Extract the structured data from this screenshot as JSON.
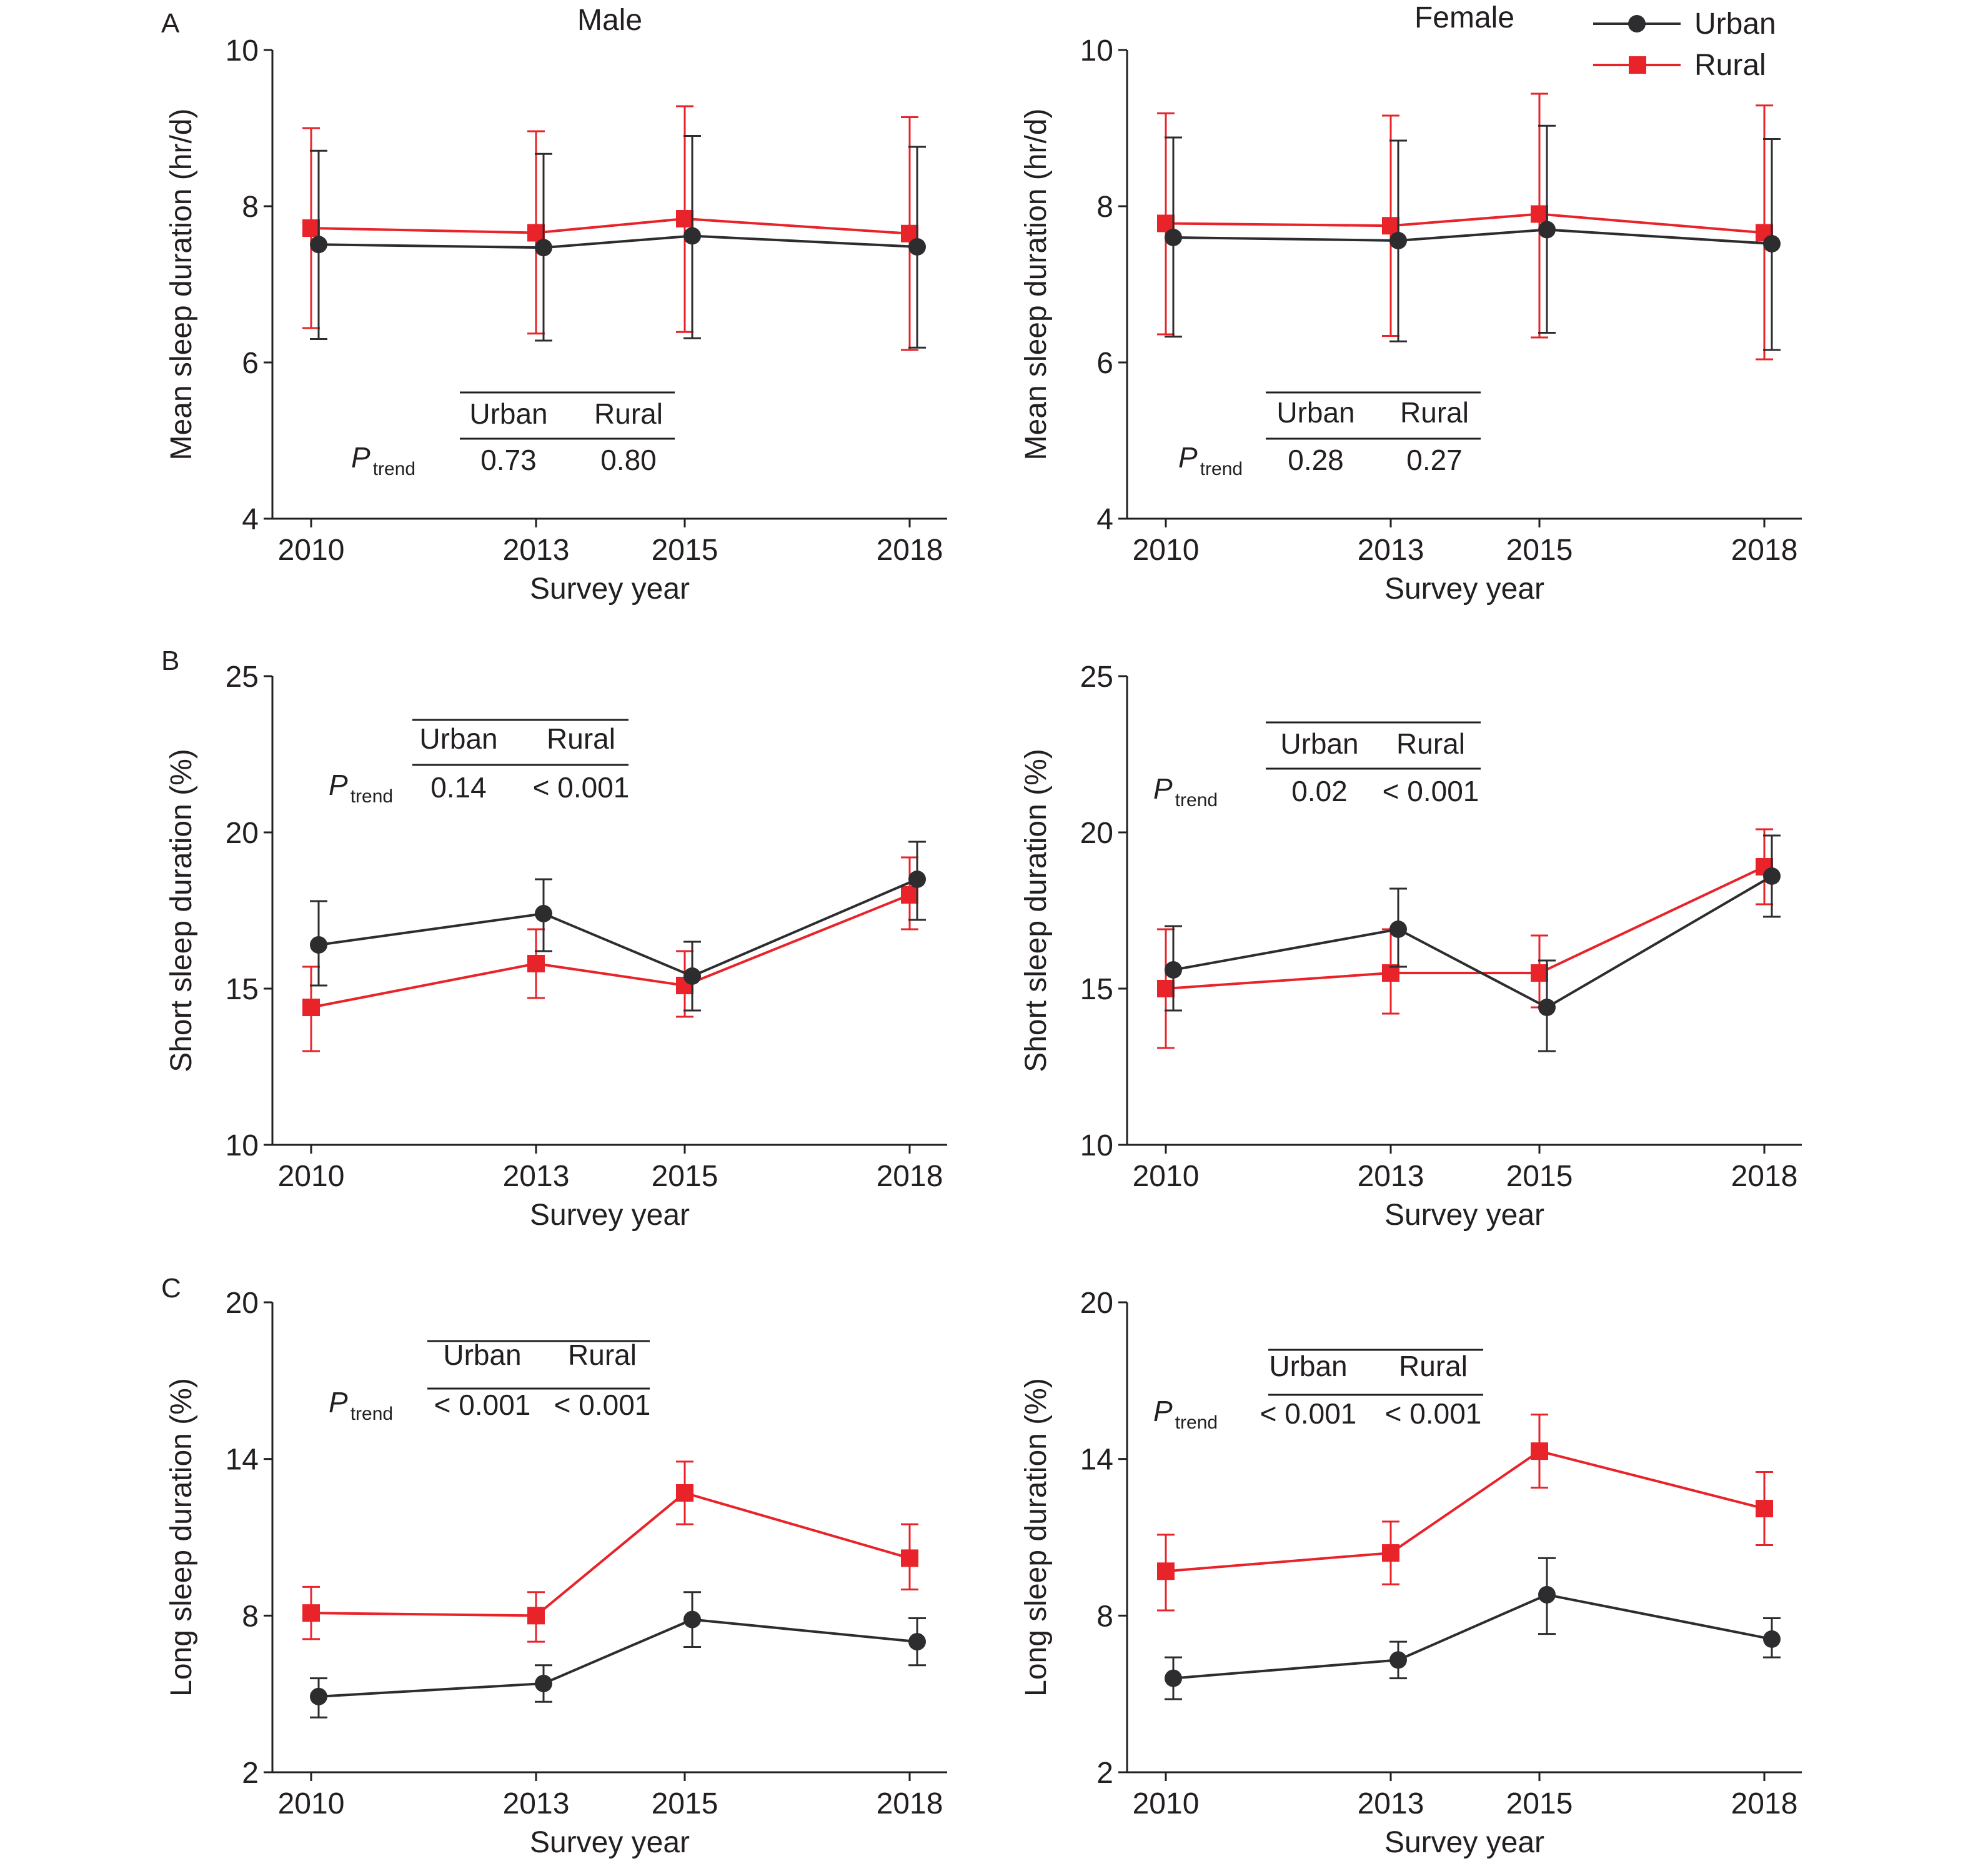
{
  "colors": {
    "urban": "#2d2d2f",
    "rural": "#e8232a",
    "axis": "#231f20"
  },
  "legend": {
    "items": [
      {
        "label": "Urban",
        "series": "urban",
        "marker": "circle"
      },
      {
        "label": "Rural",
        "series": "rural",
        "marker": "square"
      }
    ]
  },
  "ptrend_label": {
    "main": "P",
    "sub": "trend"
  },
  "chart_data": [
    {
      "type": "line",
      "panel": "A",
      "title": "Male",
      "xlabel": "Survey year",
      "ylabel": "Mean sleep duration (hr/d)",
      "x": [
        2010,
        2013,
        2015,
        2018
      ],
      "x_tick_labels": [
        "2010",
        "2013",
        "2015",
        "2018"
      ],
      "ylim": [
        4,
        10
      ],
      "y_ticks": [
        4,
        6,
        8,
        10
      ],
      "y_tick_labels": [
        "4",
        "6",
        "8",
        "10"
      ],
      "grid": false,
      "series": [
        {
          "name": "Urban",
          "values": [
            7.51,
            7.47,
            7.62,
            7.48
          ],
          "lower": [
            6.3,
            6.28,
            6.31,
            6.19
          ],
          "upper": [
            8.71,
            8.67,
            8.9,
            8.76
          ]
        },
        {
          "name": "Rural",
          "values": [
            7.72,
            7.66,
            7.84,
            7.65
          ],
          "lower": [
            6.44,
            6.37,
            6.39,
            6.16
          ],
          "upper": [
            9.0,
            8.96,
            9.28,
            9.14
          ]
        }
      ],
      "ptrend": {
        "headers": [
          "Urban",
          "Rural"
        ],
        "values": [
          "0.73",
          "0.80"
        ]
      }
    },
    {
      "type": "line",
      "panel": "A",
      "title": "Female",
      "xlabel": "Survey year",
      "ylabel": "Mean sleep duration (hr/d)",
      "x": [
        2010,
        2013,
        2015,
        2018
      ],
      "x_tick_labels": [
        "2010",
        "2013",
        "2015",
        "2018"
      ],
      "ylim": [
        4,
        10
      ],
      "y_ticks": [
        4,
        6,
        8,
        10
      ],
      "y_tick_labels": [
        "4",
        "6",
        "8",
        "10"
      ],
      "grid": false,
      "legend_position": "top-right",
      "series": [
        {
          "name": "Urban",
          "values": [
            7.6,
            7.56,
            7.7,
            7.52
          ],
          "lower": [
            6.33,
            6.27,
            6.38,
            6.16
          ],
          "upper": [
            8.88,
            8.84,
            9.03,
            8.86
          ]
        },
        {
          "name": "Rural",
          "values": [
            7.78,
            7.75,
            7.9,
            7.66
          ],
          "lower": [
            6.36,
            6.34,
            6.32,
            6.04
          ],
          "upper": [
            9.19,
            9.16,
            9.44,
            9.29
          ]
        }
      ],
      "ptrend": {
        "headers": [
          "Urban",
          "Rural"
        ],
        "values": [
          "0.28",
          "0.27"
        ]
      }
    },
    {
      "type": "line",
      "panel": "B",
      "title": "",
      "xlabel": "Survey year",
      "ylabel": "Short sleep duration (%)",
      "x": [
        2010,
        2013,
        2015,
        2018
      ],
      "x_tick_labels": [
        "2010",
        "2013",
        "2015",
        "2018"
      ],
      "ylim": [
        10,
        25
      ],
      "y_ticks": [
        10,
        15,
        20,
        25
      ],
      "y_tick_labels": [
        "10",
        "15",
        "20",
        "25"
      ],
      "grid": false,
      "series": [
        {
          "name": "Urban",
          "values": [
            16.4,
            17.4,
            15.4,
            18.5
          ],
          "lower": [
            15.1,
            16.2,
            14.3,
            17.2
          ],
          "upper": [
            17.8,
            18.5,
            16.5,
            19.7
          ]
        },
        {
          "name": "Rural",
          "values": [
            14.4,
            15.8,
            15.1,
            18.0
          ],
          "lower": [
            13.0,
            14.7,
            14.1,
            16.9
          ],
          "upper": [
            15.7,
            16.9,
            16.2,
            19.2
          ]
        }
      ],
      "ptrend": {
        "headers": [
          "Urban",
          "Rural"
        ],
        "values": [
          "0.14",
          "< 0.001"
        ]
      }
    },
    {
      "type": "line",
      "panel": "B",
      "title": "",
      "xlabel": "Survey year",
      "ylabel": "Short sleep duration (%)",
      "x": [
        2010,
        2013,
        2015,
        2018
      ],
      "x_tick_labels": [
        "2010",
        "2013",
        "2015",
        "2018"
      ],
      "ylim": [
        10,
        25
      ],
      "y_ticks": [
        10,
        15,
        20,
        25
      ],
      "y_tick_labels": [
        "10",
        "15",
        "20",
        "25"
      ],
      "grid": false,
      "series": [
        {
          "name": "Urban",
          "values": [
            15.6,
            16.9,
            14.4,
            18.6
          ],
          "lower": [
            14.3,
            15.7,
            13.0,
            17.3
          ],
          "upper": [
            17.0,
            18.2,
            15.9,
            19.9
          ]
        },
        {
          "name": "Rural",
          "values": [
            15.0,
            15.5,
            15.5,
            18.9
          ],
          "lower": [
            13.1,
            14.2,
            14.4,
            17.7
          ],
          "upper": [
            16.9,
            16.9,
            16.7,
            20.1
          ]
        }
      ],
      "ptrend": {
        "headers": [
          "Urban",
          "Rural"
        ],
        "values": [
          "0.02",
          "< 0.001"
        ]
      }
    },
    {
      "type": "line",
      "panel": "C",
      "title": "",
      "xlabel": "Survey year",
      "ylabel": "Long sleep duration (%)",
      "x": [
        2010,
        2013,
        2015,
        2018
      ],
      "x_tick_labels": [
        "2010",
        "2013",
        "2015",
        "2018"
      ],
      "ylim": [
        2,
        20
      ],
      "y_ticks": [
        2,
        8,
        14,
        20
      ],
      "y_tick_labels": [
        "2",
        "8",
        "14",
        "20"
      ],
      "grid": false,
      "series": [
        {
          "name": "Urban",
          "values": [
            4.9,
            5.4,
            7.85,
            7.0
          ],
          "lower": [
            4.1,
            4.7,
            6.8,
            6.1
          ],
          "upper": [
            5.6,
            6.1,
            8.9,
            7.9
          ]
        },
        {
          "name": "Rural",
          "values": [
            8.1,
            8.0,
            12.7,
            10.2
          ],
          "lower": [
            7.1,
            7.0,
            11.5,
            9.0
          ],
          "upper": [
            9.1,
            8.9,
            13.9,
            11.5
          ]
        }
      ],
      "ptrend": {
        "headers": [
          "Urban",
          "Rural"
        ],
        "values": [
          "< 0.001",
          "< 0.001"
        ]
      }
    },
    {
      "type": "line",
      "panel": "C",
      "title": "",
      "xlabel": "Survey year",
      "ylabel": "Long sleep duration (%)",
      "x": [
        2010,
        2013,
        2015,
        2018
      ],
      "x_tick_labels": [
        "2010",
        "2013",
        "2015",
        "2018"
      ],
      "ylim": [
        2,
        20
      ],
      "y_ticks": [
        2,
        8,
        14,
        20
      ],
      "y_tick_labels": [
        "2",
        "8",
        "14",
        "20"
      ],
      "grid": false,
      "series": [
        {
          "name": "Urban",
          "values": [
            5.6,
            6.3,
            8.8,
            7.1
          ],
          "lower": [
            4.8,
            5.6,
            7.3,
            6.4
          ],
          "upper": [
            6.4,
            7.0,
            10.2,
            7.9
          ]
        },
        {
          "name": "Rural",
          "values": [
            9.7,
            10.4,
            14.3,
            12.1
          ],
          "lower": [
            8.2,
            9.2,
            12.9,
            10.7
          ],
          "upper": [
            11.1,
            11.6,
            15.7,
            13.5
          ]
        }
      ],
      "ptrend": {
        "headers": [
          "Urban",
          "Rural"
        ],
        "values": [
          "< 0.001",
          "< 0.001"
        ]
      }
    }
  ]
}
